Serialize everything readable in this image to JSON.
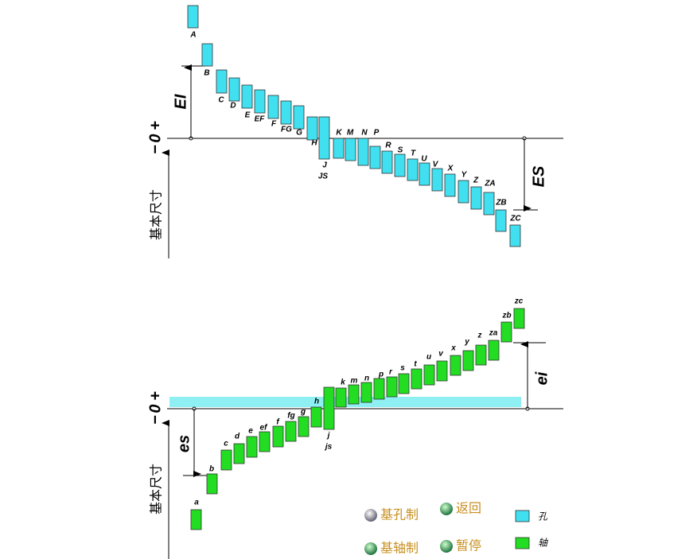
{
  "upper": {
    "axis_label": "基本尺寸",
    "zero_labels": {
      "minus": "−",
      "zero": "0",
      "plus": "+"
    },
    "lower_dev": "EI",
    "upper_dev": "ES",
    "holes": [
      "A",
      "B",
      "C",
      "D",
      "E",
      "EF",
      "F",
      "FG",
      "G",
      "H",
      "J",
      "JS",
      "K",
      "M",
      "N",
      "P",
      "R",
      "S",
      "T",
      "U",
      "V",
      "X",
      "Y",
      "Z",
      "ZA",
      "ZB",
      "ZC"
    ]
  },
  "lower": {
    "axis_label": "基本尺寸",
    "zero_labels": {
      "minus": "−",
      "zero": "0",
      "plus": "+"
    },
    "upper_dev": "es",
    "lower_dev": "ei",
    "shafts": [
      "a",
      "b",
      "c",
      "d",
      "e",
      "ef",
      "f",
      "fg",
      "g",
      "h",
      "j",
      "js",
      "k",
      "m",
      "n",
      "p",
      "r",
      "s",
      "t",
      "u",
      "v",
      "x",
      "y",
      "z",
      "za",
      "zb",
      "zc"
    ]
  },
  "buttons": [
    "基孔制",
    "返回",
    "基轴制",
    "暂停"
  ],
  "legend": [
    "孔",
    "轴"
  ]
}
